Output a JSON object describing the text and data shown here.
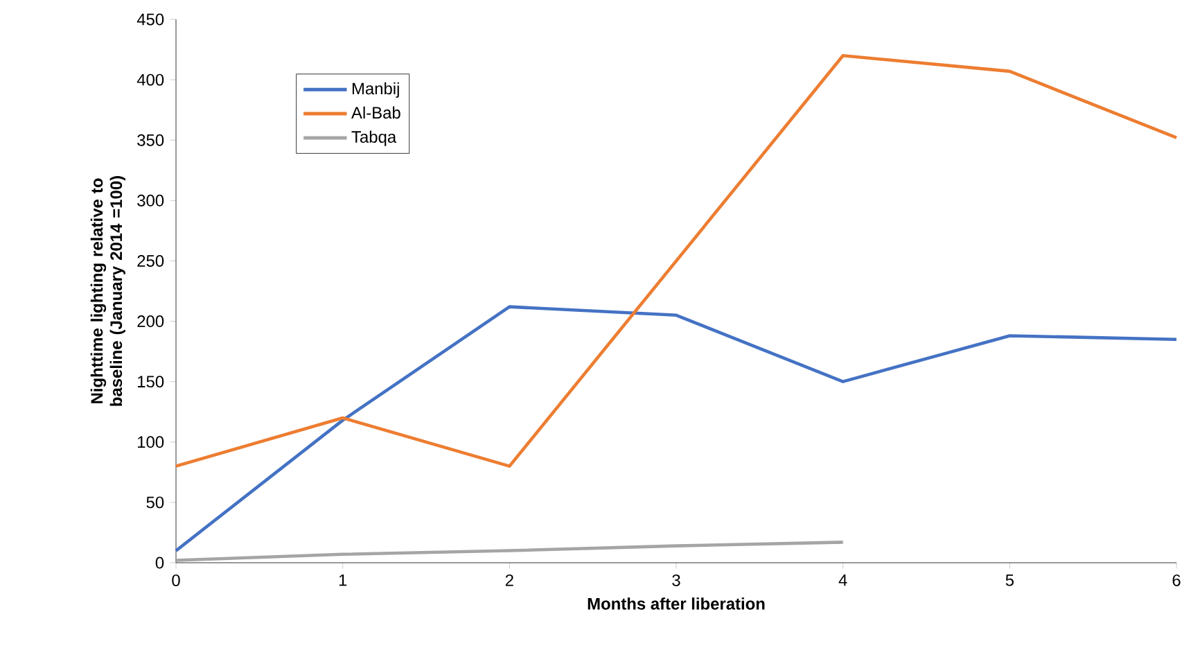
{
  "chart_data": {
    "type": "line",
    "xlabel": "Months after liberation",
    "ylabel": "Nighttime lighting relative to baseline (January 2014 =100)",
    "x": [
      0,
      1,
      2,
      3,
      4,
      5,
      6
    ],
    "series": [
      {
        "name": "Manbij",
        "color": "#4472c4",
        "values": [
          10,
          118,
          212,
          205,
          150,
          188,
          185
        ]
      },
      {
        "name": "Al-Bab",
        "color": "#ed7d31",
        "values": [
          80,
          120,
          80,
          250,
          420,
          407,
          352
        ]
      },
      {
        "name": "Tabqa",
        "color": "#a5a5a5",
        "values": [
          2,
          7,
          10,
          14,
          17,
          null,
          null
        ]
      }
    ],
    "xlim": [
      0,
      6
    ],
    "xticks": [
      0,
      1,
      2,
      3,
      4,
      5,
      6
    ],
    "ylim": [
      0,
      450
    ],
    "yticks": [
      0,
      50,
      100,
      150,
      200,
      250,
      300,
      350,
      400,
      450
    ],
    "legend": "top left",
    "marker": "none",
    "line_style": "solid"
  }
}
